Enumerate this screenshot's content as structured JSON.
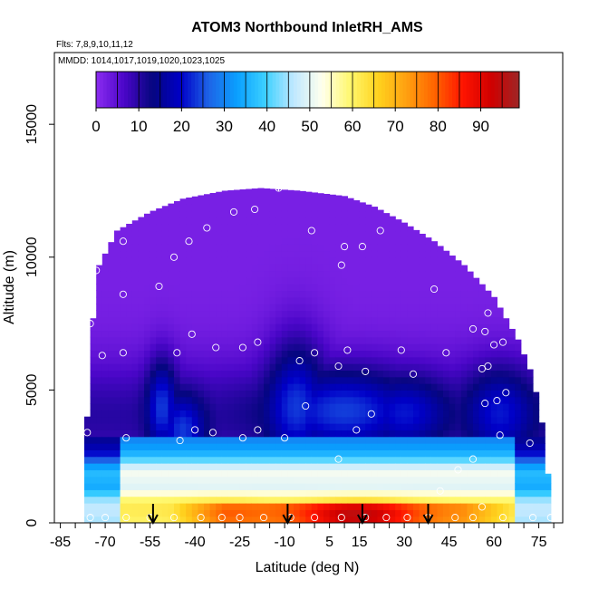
{
  "chart_data": {
    "type": "heatmap",
    "title": "ATOM3 Northbound InletRH_AMS",
    "flights_label": "Flts: 7,8,9,10,11,12",
    "dates_label": "MMDD: 1014,1017,1019,1020,1023,1025",
    "xlabel": "Latitude (deg N)",
    "ylabel": "Altitude (m)",
    "xlim": [
      -87,
      83
    ],
    "ylim": [
      0,
      17700
    ],
    "x_ticks": [
      -85,
      -70,
      -55,
      -40,
      -25,
      -10,
      5,
      15,
      30,
      45,
      60,
      75
    ],
    "x_minor_ticks": [
      -80,
      -75,
      -65,
      -60,
      -50,
      -45,
      -35,
      -30,
      -20,
      -15,
      -5,
      0,
      10,
      20,
      25,
      35,
      40,
      50,
      55,
      65,
      70,
      80
    ],
    "y_ticks": [
      0,
      5000,
      10000,
      15000
    ],
    "colorbar": {
      "range": [
        0,
        99
      ],
      "ticks": [
        0,
        10,
        20,
        30,
        40,
        50,
        60,
        70,
        80,
        90
      ],
      "colors": [
        "#8c2cf0",
        "#4a06c8",
        "#06067f",
        "#0000c8",
        "#1e64e6",
        "#0aa0ff",
        "#3cd0ff",
        "#bfe8ff",
        "#ffffee",
        "#fff86e",
        "#ffd21e",
        "#ffa010",
        "#ff6400",
        "#ff1400",
        "#d00000",
        "#9e2626"
      ]
    },
    "field": {
      "description": "Relative humidity (%) by latitude and altitude",
      "envelope": [
        {
          "lat": -76,
          "top": 4000
        },
        {
          "lat": -74,
          "top": 7700
        },
        {
          "lat": -72,
          "top": 9700
        },
        {
          "lat": -66,
          "top": 11000
        },
        {
          "lat": -55,
          "top": 11700
        },
        {
          "lat": -44,
          "top": 12200
        },
        {
          "lat": -30,
          "top": 12500
        },
        {
          "lat": -18,
          "top": 12600
        },
        {
          "lat": -5,
          "top": 12500
        },
        {
          "lat": 10,
          "top": 12300
        },
        {
          "lat": 20,
          "top": 11900
        },
        {
          "lat": 30,
          "top": 11300
        },
        {
          "lat": 40,
          "top": 10600
        },
        {
          "lat": 50,
          "top": 9700
        },
        {
          "lat": 60,
          "top": 8500
        },
        {
          "lat": 68,
          "top": 6900
        },
        {
          "lat": 73,
          "top": 5500
        },
        {
          "lat": 77,
          "top": 3200
        },
        {
          "lat": 79,
          "top": 500
        }
      ]
    },
    "observation_points": [
      {
        "lat": -75,
        "alt": 200
      },
      {
        "lat": -70,
        "alt": 200
      },
      {
        "lat": -63,
        "alt": 200
      },
      {
        "lat": -55,
        "alt": 200
      },
      {
        "lat": -47,
        "alt": 200
      },
      {
        "lat": -38,
        "alt": 200
      },
      {
        "lat": -31,
        "alt": 200
      },
      {
        "lat": -25,
        "alt": 200
      },
      {
        "lat": -17,
        "alt": 200
      },
      {
        "lat": -8,
        "alt": 200
      },
      {
        "lat": 0,
        "alt": 200
      },
      {
        "lat": 9,
        "alt": 200
      },
      {
        "lat": 17,
        "alt": 200
      },
      {
        "lat": 24,
        "alt": 200
      },
      {
        "lat": 31,
        "alt": 200
      },
      {
        "lat": 38,
        "alt": 200
      },
      {
        "lat": 47,
        "alt": 200
      },
      {
        "lat": 53,
        "alt": 200
      },
      {
        "lat": 63,
        "alt": 200
      },
      {
        "lat": 73,
        "alt": 200
      },
      {
        "lat": 79,
        "alt": 200
      },
      {
        "lat": -86,
        "alt": 5400
      },
      {
        "lat": -76,
        "alt": 3400
      },
      {
        "lat": -75,
        "alt": 7500
      },
      {
        "lat": -73,
        "alt": 9500
      },
      {
        "lat": -71,
        "alt": 6300
      },
      {
        "lat": -64,
        "alt": 8600
      },
      {
        "lat": -64,
        "alt": 10600
      },
      {
        "lat": -64,
        "alt": 6400
      },
      {
        "lat": -63,
        "alt": 3200
      },
      {
        "lat": -52,
        "alt": 8900
      },
      {
        "lat": -47,
        "alt": 10000
      },
      {
        "lat": -46,
        "alt": 6400
      },
      {
        "lat": -45,
        "alt": 3100
      },
      {
        "lat": -42,
        "alt": 10600
      },
      {
        "lat": -41,
        "alt": 7100
      },
      {
        "lat": -40,
        "alt": 3500
      },
      {
        "lat": -36,
        "alt": 11100
      },
      {
        "lat": -34,
        "alt": 3400
      },
      {
        "lat": -33,
        "alt": 6600
      },
      {
        "lat": -27,
        "alt": 11700
      },
      {
        "lat": -24,
        "alt": 3200
      },
      {
        "lat": -24,
        "alt": 6600
      },
      {
        "lat": -20,
        "alt": 11800
      },
      {
        "lat": -19,
        "alt": 6800
      },
      {
        "lat": -19,
        "alt": 3500
      },
      {
        "lat": -12,
        "alt": 12600
      },
      {
        "lat": -10,
        "alt": 3200
      },
      {
        "lat": -5,
        "alt": 6100
      },
      {
        "lat": -3,
        "alt": 4400
      },
      {
        "lat": -1,
        "alt": 11000
      },
      {
        "lat": 0,
        "alt": 6400
      },
      {
        "lat": 8,
        "alt": 5900
      },
      {
        "lat": 8,
        "alt": 2400
      },
      {
        "lat": 9,
        "alt": 9700
      },
      {
        "lat": 10,
        "alt": 10400
      },
      {
        "lat": 11,
        "alt": 6500
      },
      {
        "lat": 14,
        "alt": 3500
      },
      {
        "lat": 16,
        "alt": 10400
      },
      {
        "lat": 17,
        "alt": 5700
      },
      {
        "lat": 19,
        "alt": 4100
      },
      {
        "lat": 22,
        "alt": 11000
      },
      {
        "lat": 29,
        "alt": 6500
      },
      {
        "lat": 33,
        "alt": 5600
      },
      {
        "lat": 35,
        "alt": 11500
      },
      {
        "lat": 40,
        "alt": 8800
      },
      {
        "lat": 42,
        "alt": 1200
      },
      {
        "lat": 44,
        "alt": 6400
      },
      {
        "lat": 48,
        "alt": 2000
      },
      {
        "lat": 53,
        "alt": 2400
      },
      {
        "lat": 53,
        "alt": 7300
      },
      {
        "lat": 56,
        "alt": 600
      },
      {
        "lat": 56,
        "alt": 5800
      },
      {
        "lat": 57,
        "alt": 4500
      },
      {
        "lat": 57,
        "alt": 7200
      },
      {
        "lat": 58,
        "alt": 7900
      },
      {
        "lat": 58,
        "alt": 5900
      },
      {
        "lat": 60,
        "alt": 6700
      },
      {
        "lat": 61,
        "alt": 4600
      },
      {
        "lat": 62,
        "alt": 3300
      },
      {
        "lat": 63,
        "alt": 6800
      },
      {
        "lat": 64,
        "alt": 4900
      },
      {
        "lat": 65,
        "alt": 8500
      },
      {
        "lat": 71,
        "alt": 6700
      },
      {
        "lat": 72,
        "alt": 3000
      }
    ],
    "arrow_latitudes": [
      -54,
      -9,
      16,
      38
    ],
    "summit_marker": {
      "lat": -12,
      "alt": 12900
    }
  }
}
